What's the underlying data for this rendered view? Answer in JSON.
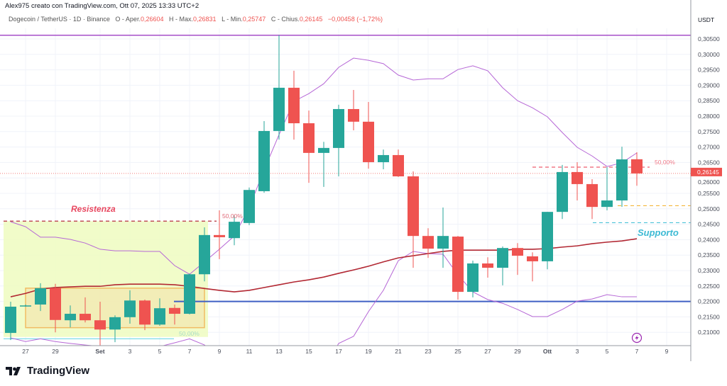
{
  "header": {
    "credit": "Alex975 creato con TradingView.com, Ott 07, 2025 13:33 UTC+2",
    "symbol": "Dogecoin / TetherUS · 1D · Binance",
    "open_label": "O - Aper.",
    "open": "0,26604",
    "high_label": "H - Max.",
    "high": "0,26831",
    "low_label": "L - Min.",
    "low": "0,25747",
    "close_label": "C - Chius.",
    "close": "0,26145",
    "change": "−0,00458 (−1,72%)"
  },
  "footer": {
    "logo_text": "TradingView"
  },
  "colors": {
    "up": "#26a69a",
    "down": "#ef5350",
    "band": "#b667d6",
    "ma": "#b22833",
    "support_blue": "#3f5fc4",
    "zone": "#eefbbf",
    "box": "#f2a23a",
    "supporto": "#3dbad4",
    "resistenza": "#e8475f"
  },
  "chart_data": {
    "type": "candlestick",
    "axis_currency": "USDT",
    "ylim": [
      0.2065,
      0.307
    ],
    "y_ticks": [
      "0,30500",
      "0,30000",
      "0,29500",
      "0,29000",
      "0,28500",
      "0,28000",
      "0,27500",
      "0,27000",
      "0,26500",
      "0,26000",
      "0,25500",
      "0,25000",
      "0,24500",
      "0,24000",
      "0,23500",
      "0,23000",
      "0,22500",
      "0,22000",
      "0,21500",
      "0,21000"
    ],
    "x_ticks": [
      {
        "label": "27",
        "date": "2025-08-27"
      },
      {
        "label": "29",
        "date": "2025-08-29"
      },
      {
        "label": "Set",
        "date": "2025-09-01"
      },
      {
        "label": "3",
        "date": "2025-09-03"
      },
      {
        "label": "5",
        "date": "2025-09-05"
      },
      {
        "label": "7",
        "date": "2025-09-07"
      },
      {
        "label": "9",
        "date": "2025-09-09"
      },
      {
        "label": "11",
        "date": "2025-09-11"
      },
      {
        "label": "13",
        "date": "2025-09-13"
      },
      {
        "label": "15",
        "date": "2025-09-15"
      },
      {
        "label": "17",
        "date": "2025-09-17"
      },
      {
        "label": "19",
        "date": "2025-09-19"
      },
      {
        "label": "21",
        "date": "2025-09-21"
      },
      {
        "label": "23",
        "date": "2025-09-23"
      },
      {
        "label": "25",
        "date": "2025-09-25"
      },
      {
        "label": "27",
        "date": "2025-09-27"
      },
      {
        "label": "29",
        "date": "2025-09-29"
      },
      {
        "label": "Ott",
        "date": "2025-10-01"
      },
      {
        "label": "3",
        "date": "2025-10-03"
      },
      {
        "label": "5",
        "date": "2025-10-05"
      },
      {
        "label": "7",
        "date": "2025-10-07"
      },
      {
        "label": "9",
        "date": "2025-10-09"
      }
    ],
    "current_price_label": "0,26145",
    "current_price": 0.26145,
    "candles": [
      {
        "date": "2025-08-26",
        "o": 0.2098,
        "h": 0.2199,
        "l": 0.2075,
        "c": 0.2183
      },
      {
        "date": "2025-08-27",
        "o": 0.2185,
        "h": 0.219,
        "l": 0.2183,
        "c": 0.2187
      },
      {
        "date": "2025-08-28",
        "o": 0.219,
        "h": 0.2259,
        "l": 0.2169,
        "c": 0.2243
      },
      {
        "date": "2025-08-29",
        "o": 0.2243,
        "h": 0.2257,
        "l": 0.21,
        "c": 0.214
      },
      {
        "date": "2025-08-30",
        "o": 0.2139,
        "h": 0.2187,
        "l": 0.2116,
        "c": 0.216
      },
      {
        "date": "2025-08-31",
        "o": 0.216,
        "h": 0.2213,
        "l": 0.2132,
        "c": 0.2139
      },
      {
        "date": "2025-09-01",
        "o": 0.2139,
        "h": 0.2199,
        "l": 0.2055,
        "c": 0.2109
      },
      {
        "date": "2025-09-02",
        "o": 0.2109,
        "h": 0.2155,
        "l": 0.2068,
        "c": 0.2149
      },
      {
        "date": "2025-09-03",
        "o": 0.2149,
        "h": 0.2236,
        "l": 0.2128,
        "c": 0.2203
      },
      {
        "date": "2025-09-04",
        "o": 0.2203,
        "h": 0.2206,
        "l": 0.2107,
        "c": 0.2125
      },
      {
        "date": "2025-09-05",
        "o": 0.2125,
        "h": 0.221,
        "l": 0.2121,
        "c": 0.2178
      },
      {
        "date": "2025-09-06",
        "o": 0.2179,
        "h": 0.219,
        "l": 0.2125,
        "c": 0.216
      },
      {
        "date": "2025-09-07",
        "o": 0.216,
        "h": 0.229,
        "l": 0.2158,
        "c": 0.2288
      },
      {
        "date": "2025-09-08",
        "o": 0.2288,
        "h": 0.244,
        "l": 0.2265,
        "c": 0.2415
      },
      {
        "date": "2025-09-09",
        "o": 0.2415,
        "h": 0.2495,
        "l": 0.2337,
        "c": 0.2408
      },
      {
        "date": "2025-09-10",
        "o": 0.2405,
        "h": 0.2479,
        "l": 0.2382,
        "c": 0.2458
      },
      {
        "date": "2025-09-11",
        "o": 0.2454,
        "h": 0.2569,
        "l": 0.2447,
        "c": 0.2561
      },
      {
        "date": "2025-09-12",
        "o": 0.2557,
        "h": 0.2784,
        "l": 0.2552,
        "c": 0.2752
      },
      {
        "date": "2025-09-13",
        "o": 0.2752,
        "h": 0.3062,
        "l": 0.2724,
        "c": 0.2892
      },
      {
        "date": "2025-09-14",
        "o": 0.2892,
        "h": 0.2947,
        "l": 0.2724,
        "c": 0.2777
      },
      {
        "date": "2025-09-15",
        "o": 0.2777,
        "h": 0.2818,
        "l": 0.2584,
        "c": 0.2681
      },
      {
        "date": "2025-09-16",
        "o": 0.2681,
        "h": 0.2717,
        "l": 0.2571,
        "c": 0.2697
      },
      {
        "date": "2025-09-17",
        "o": 0.2697,
        "h": 0.2837,
        "l": 0.2605,
        "c": 0.2823
      },
      {
        "date": "2025-09-18",
        "o": 0.2823,
        "h": 0.2885,
        "l": 0.2754,
        "c": 0.2782
      },
      {
        "date": "2025-09-19",
        "o": 0.2782,
        "h": 0.2846,
        "l": 0.263,
        "c": 0.2651
      },
      {
        "date": "2025-09-20",
        "o": 0.2651,
        "h": 0.2692,
        "l": 0.2628,
        "c": 0.2674
      },
      {
        "date": "2025-09-21",
        "o": 0.2674,
        "h": 0.2692,
        "l": 0.2603,
        "c": 0.2605
      },
      {
        "date": "2025-09-22",
        "o": 0.2605,
        "h": 0.2621,
        "l": 0.2309,
        "c": 0.2412
      },
      {
        "date": "2025-09-23",
        "o": 0.2412,
        "h": 0.2437,
        "l": 0.2341,
        "c": 0.2371
      },
      {
        "date": "2025-09-24",
        "o": 0.2371,
        "h": 0.2504,
        "l": 0.2309,
        "c": 0.2412
      },
      {
        "date": "2025-09-25",
        "o": 0.241,
        "h": 0.2412,
        "l": 0.2206,
        "c": 0.2231
      },
      {
        "date": "2025-09-26",
        "o": 0.2231,
        "h": 0.2332,
        "l": 0.2213,
        "c": 0.2323
      },
      {
        "date": "2025-09-27",
        "o": 0.2323,
        "h": 0.2343,
        "l": 0.2277,
        "c": 0.2309
      },
      {
        "date": "2025-09-28",
        "o": 0.2309,
        "h": 0.2378,
        "l": 0.2252,
        "c": 0.2373
      },
      {
        "date": "2025-09-29",
        "o": 0.2373,
        "h": 0.2389,
        "l": 0.2286,
        "c": 0.2348
      },
      {
        "date": "2025-09-30",
        "o": 0.2346,
        "h": 0.2359,
        "l": 0.2265,
        "c": 0.233
      },
      {
        "date": "2025-10-01",
        "o": 0.233,
        "h": 0.249,
        "l": 0.2304,
        "c": 0.249
      },
      {
        "date": "2025-10-02",
        "o": 0.249,
        "h": 0.2642,
        "l": 0.2467,
        "c": 0.2619
      },
      {
        "date": "2025-10-03",
        "o": 0.2619,
        "h": 0.2651,
        "l": 0.2527,
        "c": 0.258
      },
      {
        "date": "2025-10-04",
        "o": 0.258,
        "h": 0.2596,
        "l": 0.2467,
        "c": 0.2506
      },
      {
        "date": "2025-10-05",
        "o": 0.2506,
        "h": 0.2635,
        "l": 0.2495,
        "c": 0.2527
      },
      {
        "date": "2025-10-06",
        "o": 0.2527,
        "h": 0.2701,
        "l": 0.2506,
        "c": 0.266
      },
      {
        "date": "2025-10-07",
        "o": 0.26604,
        "h": 0.26831,
        "l": 0.25747,
        "c": 0.26145
      }
    ],
    "upper_band": [
      0.2458,
      0.2442,
      0.2408,
      0.2408,
      0.2401,
      0.2389,
      0.2369,
      0.2364,
      0.2364,
      0.2362,
      0.2362,
      0.2316,
      0.2288,
      0.2328,
      0.2369,
      0.2412,
      0.2504,
      0.2626,
      0.274,
      0.2848,
      0.2873,
      0.2905,
      0.2958,
      0.2988,
      0.2981,
      0.297,
      0.2933,
      0.2917,
      0.2921,
      0.2921,
      0.2951,
      0.2963,
      0.2947,
      0.2892,
      0.285,
      0.2827,
      0.2798,
      0.2747,
      0.2699,
      0.2671,
      0.2637,
      0.2649,
      0.2681
    ],
    "lower_band": [
      0.2082,
      0.207,
      0.2079,
      0.207,
      0.2064,
      0.2059,
      0.2054,
      0.2054,
      0.2054,
      0.2052,
      0.2054,
      0.2066,
      0.2079,
      0.2059,
      0.202,
      0.199,
      0.196,
      0.193,
      0.191,
      0.19,
      0.192,
      0.198,
      0.2064,
      0.2087,
      0.2167,
      0.2236,
      0.2332,
      0.2362,
      0.2355,
      0.2353,
      0.2286,
      0.2231,
      0.2206,
      0.2194,
      0.2174,
      0.2151,
      0.2151,
      0.2174,
      0.2201,
      0.2208,
      0.2222,
      0.2215,
      0.2215
    ],
    "moving_average": [
      0.2215,
      0.2226,
      0.224,
      0.2245,
      0.2247,
      0.2249,
      0.2249,
      0.2254,
      0.2256,
      0.2256,
      0.2256,
      0.2254,
      0.2249,
      0.2242,
      0.2236,
      0.2231,
      0.2236,
      0.2245,
      0.2254,
      0.2263,
      0.227,
      0.2279,
      0.2291,
      0.2302,
      0.2314,
      0.2328,
      0.2341,
      0.2348,
      0.2355,
      0.2362,
      0.2366,
      0.2366,
      0.2366,
      0.2366,
      0.2369,
      0.2369,
      0.2371,
      0.2376,
      0.238,
      0.2387,
      0.2392,
      0.2396,
      0.2403
    ],
    "annotations": {
      "resistance_label": "Resistenza",
      "support_label": "Supporto",
      "fib_label_1": "50,00%",
      "fib_label_2": "50,00%",
      "fib_label_3": "50,00%",
      "levels": {
        "top_purple": 0.3062,
        "support_blue": 0.22,
        "resistance": 0.246,
        "fib_50_right": 0.2635,
        "yellow_level": 0.251,
        "support_cyan": 0.2455,
        "range_cyan": 0.2079
      },
      "zone": {
        "from": "2025-08-26",
        "to": "2025-09-08",
        "top": 0.246,
        "bottom": 0.2085
      },
      "box": {
        "from": "2025-08-27",
        "to": "2025-09-08",
        "top": 0.2243,
        "bottom": 0.2115
      }
    }
  }
}
